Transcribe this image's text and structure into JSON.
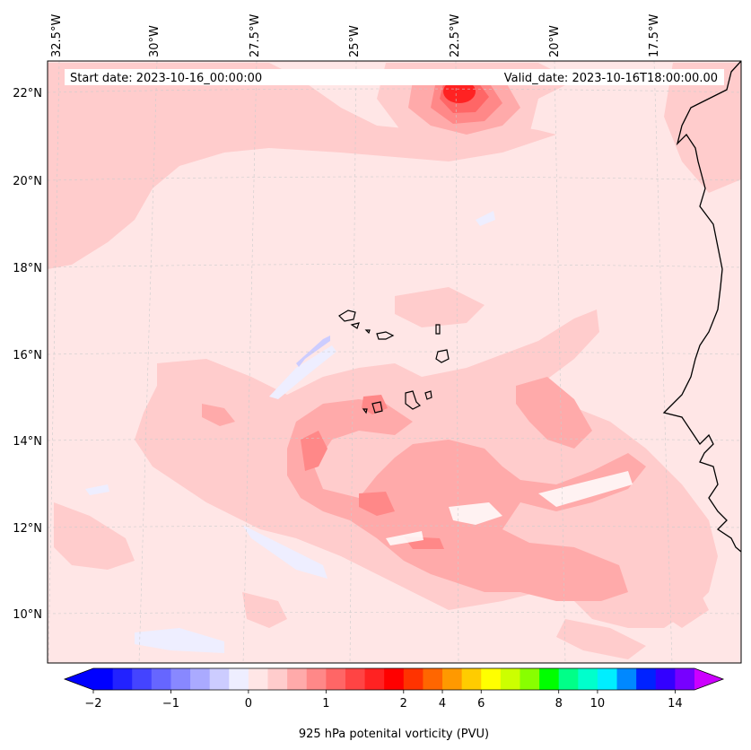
{
  "header": {
    "start_date": "Start date: 2023-10-16_00:00:00",
    "valid_date": "Valid_date: 2023-10-16T18:00:00.00"
  },
  "lon_labels": [
    "32.5°W",
    "30°W",
    "27.5°W",
    "25°W",
    "22.5°W",
    "20°W",
    "17.5°W"
  ],
  "lat_labels": [
    "22°N",
    "20°N",
    "18°N",
    "16°N",
    "14°N",
    "12°N",
    "10°N"
  ],
  "colorbar": {
    "label": "925 hPa potenital vorticity (PVU)",
    "tick_labels": [
      "−2",
      "−1",
      "0",
      "1",
      "2",
      "4",
      "6",
      "8",
      "10",
      "14"
    ],
    "colors": [
      "#0000ff",
      "#2222ff",
      "#4444ff",
      "#6666ff",
      "#8888ff",
      "#aaaaff",
      "#ccccff",
      "#eeeeff",
      "#ffe6e6",
      "#ffcccc",
      "#ffaaaa",
      "#ff8888",
      "#ff6666",
      "#ff4444",
      "#ff2222",
      "#ff0000",
      "#ff3300",
      "#ff6600",
      "#ff9900",
      "#ffcc00",
      "#ffff00",
      "#ccff00",
      "#88ff00",
      "#00ff00",
      "#00ff88",
      "#00ffcc",
      "#00eeff",
      "#0088ff",
      "#0022ff",
      "#3300ff",
      "#7700ff"
    ],
    "under_color": "#0000ff",
    "over_color": "#cc00ff"
  },
  "chart_data": {
    "type": "heatmap",
    "title": "",
    "variable": "925 hPa potenital vorticity (PVU)",
    "x_extent_deg": [
      -33,
      -15.5
    ],
    "y_extent_deg": [
      9,
      22.8
    ],
    "levels": [
      -2,
      -1,
      0,
      1,
      2,
      4,
      6,
      8,
      10,
      14
    ],
    "background_value_pvu": 0.1,
    "features": [
      {
        "name": "max near 22N 22.5W",
        "value_pvu": 2.0
      },
      {
        "name": "band 13N-14N 23W-24W",
        "value_pvu": 0.8
      },
      {
        "name": "band 11N-12N 22W-23W",
        "value_pvu": 0.7
      },
      {
        "name": "negative streak near 16N 26W",
        "value_pvu": -0.3
      },
      {
        "name": "spot near 14.8N 24W",
        "value_pvu": 1.2
      }
    ],
    "grid": true
  }
}
